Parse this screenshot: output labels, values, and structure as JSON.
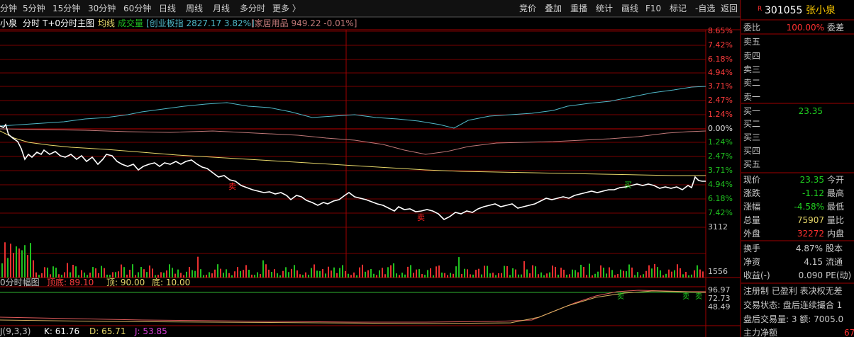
{
  "toolbar": {
    "periods": [
      "分钟",
      "5分钟",
      "15分钟",
      "30分钟",
      "60分钟",
      "日线",
      "周线",
      "月线",
      "多分时",
      "更多 〉"
    ],
    "buttons": [
      "竞价",
      "叠加",
      "重播",
      "统计",
      "画线",
      "F10",
      "标记",
      "-自选",
      "返回"
    ]
  },
  "info": {
    "name": "小泉",
    "mode": "分时",
    "main": "T+0分时主图",
    "avg": "均线",
    "vol": "成交量",
    "index": "[创业板指 2827.17 3.82%]",
    "sector": "[家居用品 949.22 -0.01%]"
  },
  "axis": {
    "upper": [
      "8.65%",
      "7.42%",
      "6.18%",
      "4.94%",
      "3.71%",
      "2.47%",
      "1.24%"
    ],
    "zero": "0.00%",
    "lower": [
      "1.24%",
      "2.47%",
      "3.71%",
      "4.94%",
      "6.18%",
      "7.42%"
    ],
    "volume": [
      "3112",
      "1556"
    ],
    "indicator": [
      "96.97",
      "72.73",
      "48.49"
    ]
  },
  "signals": {
    "price": [
      "卖",
      "卖",
      "买"
    ],
    "indicator": [
      "卖",
      "卖",
      "卖"
    ]
  },
  "indicator": {
    "title": "0分时幅图",
    "labels": [
      "顶底: 89.10",
      "顶: 90.00",
      "底: 10.00"
    ]
  },
  "kdj": {
    "title": "J(9,3,3)",
    "labels": [
      "K: 61.76",
      "D: 65.71",
      "J: 53.85"
    ]
  },
  "quote": {
    "badge": "R",
    "code": "301055",
    "name": "张小泉",
    "ratio": {
      "label": "委比",
      "value": "100.00%",
      "label2": "委差"
    },
    "sell": [
      "卖五",
      "卖四",
      "卖三",
      "卖二",
      "卖一"
    ],
    "buy": [
      {
        "label": "买一",
        "price": "23.35"
      },
      {
        "label": "买二"
      },
      {
        "label": "买三"
      },
      {
        "label": "买四"
      },
      {
        "label": "买五"
      }
    ],
    "stats": [
      {
        "label": "现价",
        "value": "23.35",
        "label2": "今开"
      },
      {
        "label": "涨跌",
        "value": "-1.12",
        "label2": "最高"
      },
      {
        "label": "涨幅",
        "value": "-4.58%",
        "label2": "最低"
      },
      {
        "label": "总量",
        "value": "75907",
        "label2": "量比"
      },
      {
        "label": "外盘",
        "value": "32272",
        "label2": "内盘"
      }
    ],
    "stats2": [
      {
        "label": "换手",
        "value": "4.87%",
        "label2": "股本"
      },
      {
        "label": "净资",
        "value": "4.15",
        "label2": "流通"
      },
      {
        "label": "收益(-)",
        "value": "0.090",
        "label2": "PE(动)"
      }
    ],
    "notes": [
      "注册制 已盈利 表决权无差",
      "交易状态: 盘后连续撮合 1",
      "盘后交易量: 3 额: 7005.0",
      "主力净额"
    ],
    "tail": "67"
  }
}
